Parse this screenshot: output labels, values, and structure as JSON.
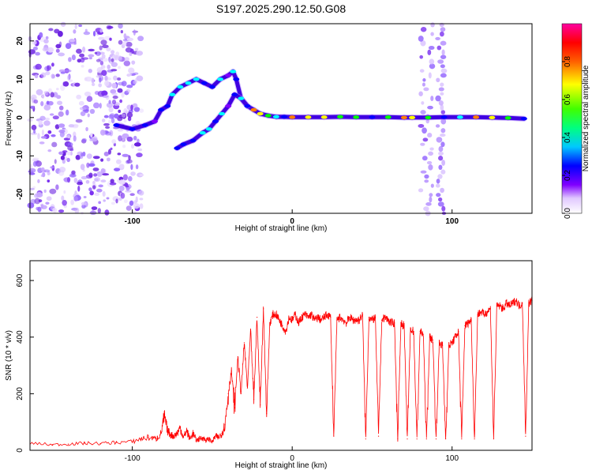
{
  "title": "S197.2025.290.12.50.G08",
  "chart_data": [
    {
      "type": "heatmap",
      "xlabel": "Height of straight line (km)",
      "ylabel": "Frequency (Hz)",
      "xlim": [
        -164,
        150
      ],
      "ylim": [
        -25,
        24.5
      ],
      "xticks": [
        -100,
        0,
        100
      ],
      "xtick_labels": [
        "-100",
        "0",
        "100"
      ],
      "yticks": [
        -20,
        -10,
        0,
        10,
        20
      ],
      "ytick_labels": [
        "-20",
        "-10",
        "0",
        "10",
        "20"
      ],
      "colorbar": {
        "label": "Normalized spectral amplitude",
        "range": [
          0,
          1
        ],
        "ticks": [
          0.0,
          0.2,
          0.4,
          0.6,
          0.8
        ],
        "tick_labels": [
          "0.0",
          "0.2",
          "0.4",
          "0.6",
          "0.8"
        ],
        "colors": [
          "#ffffff",
          "#d0b0ff",
          "#8000ff",
          "#0000ff",
          "#00ffff",
          "#00ff00",
          "#ffff00",
          "#ff8000",
          "#ff0000",
          "#ff00a0"
        ]
      },
      "traces": [
        {
          "name": "main tone",
          "x": [
            -110,
            -100,
            -92,
            -86,
            -82,
            -78,
            -75,
            -70,
            -65,
            -60,
            -55,
            -50,
            -45,
            -40,
            -37,
            -35,
            -32,
            -28,
            -24,
            -20,
            -15,
            -10,
            -5,
            0,
            10,
            20,
            30,
            40,
            50,
            60,
            70,
            75,
            85,
            95,
            105,
            115,
            125,
            135,
            145
          ],
          "y": [
            -2,
            -3,
            -2,
            -1,
            2,
            3,
            6,
            8,
            9,
            10,
            9,
            8,
            10,
            11,
            12,
            10,
            5,
            3,
            2,
            1,
            0.5,
            0.2,
            0.2,
            0.1,
            0.1,
            0.1,
            0.2,
            0.1,
            0.1,
            0.1,
            0,
            0,
            0,
            0.1,
            0.1,
            0.1,
            0,
            -0.1,
            -0.3
          ]
        },
        {
          "name": "second tone",
          "x": [
            -72,
            -68,
            -62,
            -56,
            -52,
            -48,
            -44,
            -40,
            -36,
            -32,
            -28
          ],
          "y": [
            -8,
            -7,
            -6,
            -4,
            -3,
            -1,
            1,
            3,
            6,
            5,
            3
          ]
        }
      ]
    },
    {
      "type": "line",
      "xlabel": "Height of straight line (km)",
      "ylabel": "SNR (10 * v/v)",
      "xlim": [
        -164,
        150
      ],
      "ylim": [
        0,
        670
      ],
      "xticks": [
        -100,
        0,
        100
      ],
      "xtick_labels": [
        "-100",
        "0",
        "100"
      ],
      "yticks": [
        0,
        200,
        400,
        600
      ],
      "ytick_labels": [
        "0",
        "200",
        "400",
        "600"
      ],
      "series": [
        {
          "name": "SNR",
          "color": "#ff0000",
          "x": [
            -164,
            -150,
            -140,
            -130,
            -120,
            -110,
            -100,
            -95,
            -90,
            -85,
            -82,
            -80,
            -78,
            -76,
            -74,
            -72,
            -70,
            -68,
            -66,
            -64,
            -62,
            -60,
            -58,
            -56,
            -54,
            -52,
            -50,
            -48,
            -46,
            -44,
            -42,
            -40,
            -38,
            -36,
            -34,
            -32,
            -30,
            -28,
            -26,
            -24,
            -22,
            -20,
            -18,
            -16,
            -14,
            -12,
            -10,
            -8,
            -6,
            -4,
            -2,
            0,
            2,
            4,
            6,
            8,
            10,
            12,
            14,
            16,
            18,
            20,
            22,
            24,
            26,
            28,
            30,
            32,
            34,
            36,
            38,
            40,
            42,
            44,
            46,
            48,
            50,
            52,
            54,
            56,
            58,
            60,
            62,
            64,
            66,
            68,
            70,
            72,
            74,
            76,
            78,
            80,
            82,
            84,
            86,
            88,
            90,
            92,
            94,
            96,
            98,
            100,
            102,
            104,
            106,
            108,
            110,
            112,
            114,
            116,
            118,
            120,
            122,
            124,
            126,
            128,
            130,
            132,
            134,
            136,
            138,
            140,
            142,
            144,
            146,
            148,
            150
          ],
          "y": [
            25,
            20,
            22,
            25,
            24,
            28,
            30,
            40,
            45,
            40,
            60,
            120,
            70,
            55,
            50,
            60,
            80,
            45,
            70,
            40,
            60,
            35,
            40,
            45,
            35,
            40,
            30,
            50,
            45,
            60,
            90,
            200,
            280,
            150,
            330,
            200,
            380,
            220,
            420,
            180,
            470,
            160,
            500,
            130,
            450,
            480,
            480,
            460,
            440,
            420,
            470,
            460,
            480,
            450,
            470,
            480,
            470,
            480,
            460,
            470,
            460,
            470,
            480,
            470,
            50,
            460,
            470,
            460,
            450,
            470,
            460,
            460,
            460,
            480,
            40,
            470,
            460,
            470,
            50,
            460,
            470,
            460,
            450,
            450,
            40,
            450,
            440,
            40,
            430,
            420,
            40,
            420,
            410,
            40,
            400,
            390,
            40,
            380,
            370,
            40,
            370,
            380,
            400,
            420,
            40,
            440,
            450,
            460,
            40,
            480,
            490,
            480,
            490,
            500,
            40,
            510,
            510,
            500,
            520,
            510,
            520,
            530,
            510,
            520,
            50,
            520,
            530
          ]
        }
      ]
    }
  ]
}
